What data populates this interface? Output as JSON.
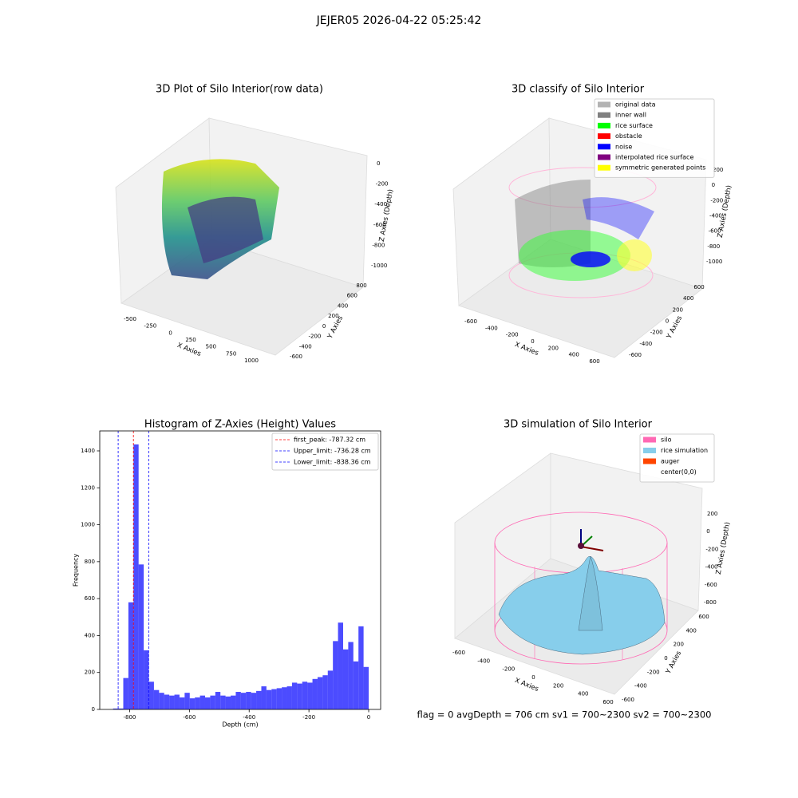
{
  "title": "JEJER05 2026-04-22 05:25:42",
  "footer": "flag = 0     avgDepth = 706 cm  sv1 = 700~2300  sv2 = 700~2300",
  "chart_data": [
    {
      "type": "scatter3d",
      "title": "3D Plot of Silo Interior(row data)",
      "xlabel": "X Axies",
      "ylabel": "Y Axies",
      "zlabel": "Z Axies (Depth)",
      "xticks": [
        -500,
        -250,
        0,
        250,
        500,
        750,
        1000
      ],
      "yticks": [
        -600,
        -400,
        -200,
        0,
        200,
        400,
        600,
        800
      ],
      "zticks": [
        0,
        -200,
        -400,
        -600,
        -800,
        -1000
      ]
    },
    {
      "type": "scatter3d",
      "title": "3D classify of Silo Interior",
      "xlabel": "X Axies",
      "ylabel": "Y Axies",
      "zlabel": "Z Axies (Depth)",
      "xticks": [
        -600,
        -400,
        -200,
        0,
        200,
        400,
        600
      ],
      "yticks": [
        -600,
        -400,
        -200,
        0,
        200,
        400,
        600
      ],
      "zticks": [
        200,
        0,
        -200,
        -400,
        -600,
        -800,
        -1000
      ],
      "legend": [
        {
          "name": "original data",
          "color": "#b3b3b3"
        },
        {
          "name": "inner wall",
          "color": "#808080"
        },
        {
          "name": "rice surface",
          "color": "#00ff00"
        },
        {
          "name": "obstacle",
          "color": "#ff0000"
        },
        {
          "name": "noise",
          "color": "#0000ff"
        },
        {
          "name": "interpolated rice surface",
          "color": "#800080"
        },
        {
          "name": "symmetric generated points",
          "color": "#ffff00"
        }
      ]
    },
    {
      "type": "histogram",
      "title": "Histogram of Z-Axies (Height) Values",
      "xlabel": "Depth (cm)",
      "ylabel": "Frequency",
      "color": "#0000ff",
      "bins": [
        -855.5,
        -838.39,
        -821.28,
        -804.17,
        -787.06,
        -769.95,
        -752.84,
        -735.73,
        -718.62,
        -701.51,
        -684.4,
        -667.29,
        -650.18,
        -633.07,
        -615.96,
        -598.85,
        -581.74,
        -564.63,
        -547.52,
        -530.41,
        -513.3,
        -496.19,
        -479.08,
        -461.97,
        -444.86,
        -427.75,
        -410.64,
        -393.53,
        -376.42,
        -359.31,
        -342.2,
        -325.09,
        -307.98,
        -290.87,
        -273.76,
        -256.65,
        -239.54,
        -222.43,
        -205.32,
        -188.21,
        -171.1,
        -153.99,
        -136.88,
        -119.77,
        -102.66,
        -85.55,
        -68.44,
        -51.33,
        -34.22,
        -17.11,
        0
      ],
      "values": [
        5,
        5,
        170,
        580,
        1435,
        785,
        320,
        150,
        105,
        90,
        80,
        75,
        80,
        65,
        90,
        60,
        65,
        75,
        65,
        75,
        95,
        75,
        70,
        75,
        95,
        90,
        95,
        90,
        100,
        125,
        105,
        110,
        115,
        120,
        125,
        145,
        140,
        150,
        145,
        165,
        175,
        185,
        210,
        370,
        470,
        325,
        365,
        260,
        450,
        230
      ],
      "xlim": [
        -900,
        40
      ],
      "ylim": [
        0,
        1508
      ],
      "xticks": [
        -800,
        -600,
        -400,
        -200,
        0
      ],
      "yticks": [
        0,
        200,
        400,
        600,
        800,
        1000,
        1200,
        1400
      ],
      "lines": [
        {
          "name": "first_peak: -787.32 cm",
          "value": -787.32,
          "color": "#ff0000"
        },
        {
          "name": "Upper_limit: -736.28 cm",
          "value": -736.28,
          "color": "#0000ff"
        },
        {
          "name": "Lower_limit: -838.36 cm",
          "value": -838.36,
          "color": "#0000ff"
        }
      ]
    },
    {
      "type": "surface3d",
      "title": "3D simulation of Silo Interior",
      "xlabel": "X Axies",
      "ylabel": "Y Axies",
      "zlabel": "Z Axies (Depth)",
      "xticks": [
        -600,
        -400,
        -200,
        0,
        200,
        400,
        600
      ],
      "yticks": [
        -600,
        -400,
        -200,
        0,
        200,
        400,
        600
      ],
      "zticks": [
        200,
        0,
        -200,
        -400,
        -600,
        -800
      ],
      "legend": [
        {
          "name": "silo",
          "color": "#ff69b4"
        },
        {
          "name": "rice simulation",
          "color": "#87ceeb"
        },
        {
          "name": "auger",
          "color": "#ff4500"
        },
        {
          "name": "center(0,0)",
          "color": "#ffffff"
        }
      ]
    }
  ]
}
